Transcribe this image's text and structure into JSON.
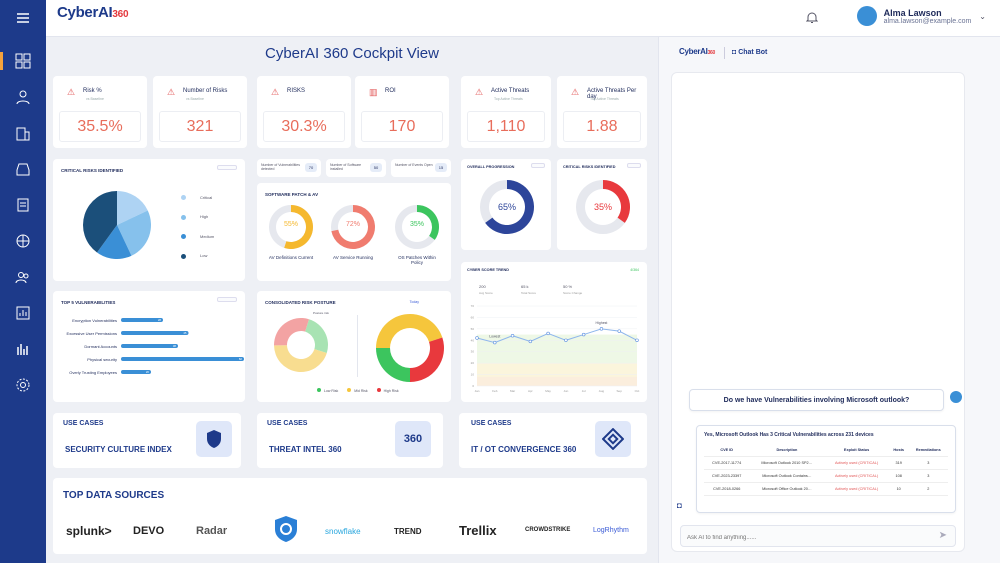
{
  "header": {
    "logo_main": "CyberAI",
    "logo_num": "360",
    "user_name": "Alma Lawson",
    "user_email": "alma.lawson@example.com"
  },
  "page_title": "CyberAI 360 Cockpit View",
  "kpis": [
    {
      "label": "Risk %",
      "sub": "vs Baseline",
      "value": "35.5%"
    },
    {
      "label": "Number of Risks",
      "sub": "vs Baseline",
      "value": "321"
    },
    {
      "label": "RISKS",
      "sub": "",
      "value": "30.3%"
    },
    {
      "label": "ROI",
      "sub": "",
      "value": "170"
    },
    {
      "label": "Active Threats",
      "sub": "Top Active Threats",
      "value": "1,110"
    },
    {
      "label": "Active Threats Per day",
      "sub": "Top Active Threats",
      "value": "1.88"
    }
  ],
  "critical_risks": {
    "title": "CRITICAL RISKS IDENTIFIED",
    "legend": [
      "Critical",
      "High",
      "Medium",
      "Low"
    ],
    "chart_data": {
      "type": "pie",
      "categories": [
        "Critical",
        "High",
        "Medium",
        "Low"
      ],
      "values": [
        18,
        25,
        17,
        40
      ],
      "colors": [
        "#aed3f3",
        "#86c1ec",
        "#3a8fd6",
        "#1b4f7a"
      ]
    }
  },
  "vuln_counts": [
    {
      "label": "Number of Vulnerabilities detected",
      "value": "70"
    },
    {
      "label": "Number of Software installed",
      "value": "50"
    },
    {
      "label": "Number of Events Open",
      "value": "15"
    }
  ],
  "patch": {
    "title": "SOFTWARE PATCH & AV",
    "items": [
      {
        "pct": "55%",
        "label": "AV Definitions Current",
        "color": "#f5b82e",
        "value": 55
      },
      {
        "pct": "72%",
        "label": "AV Service Running",
        "color": "#f07c6f",
        "value": 72
      },
      {
        "pct": "35%",
        "label": "OS Patches Within Policy",
        "color": "#3cc55e",
        "value": 35
      }
    ]
  },
  "overall": {
    "title": "OVERALL PROGRESSION",
    "pct": "65%",
    "value": 65,
    "color": "#2d459a"
  },
  "critical2": {
    "title": "CRITICAL RISKS IDENTIFIED",
    "pct": "35%",
    "value": 35,
    "color": "#e8393d"
  },
  "top_vulns": {
    "title": "TOP 5 VULNERABILITIES",
    "chart_data": {
      "type": "bar",
      "categories": [
        "Encryption Vulnerabilities",
        "Excessive User Permissions",
        "Dormant Accounts",
        "Physical security",
        "Overly Trusting Employees"
      ],
      "values": [
        28,
        45,
        38,
        82,
        20
      ]
    }
  },
  "posture": {
    "title": "CONSOLIDATED RISK POSTURE",
    "tab": "Today",
    "inner_label": "Posture risk",
    "legend": [
      "Low Risk",
      "Mid Risk",
      "High Risk"
    ],
    "chart_data": {
      "type": "pie",
      "categories": [
        "Low Risk",
        "Mid Risk",
        "High Risk"
      ],
      "values": [
        25,
        45,
        30
      ],
      "colors": [
        "#3cc55e",
        "#f5c63c",
        "#e8393d"
      ]
    }
  },
  "trend": {
    "title": "CYBER SCORE TREND",
    "badge": "4/364",
    "stats": [
      {
        "v": "200",
        "l": "Avg Score"
      },
      {
        "v": "65 k",
        "l": "Total Score"
      },
      {
        "v": "50 %",
        "l": "Score Change"
      }
    ],
    "highest": "Highest",
    "lowest": "Lowest",
    "chart_data": {
      "type": "line",
      "x": [
        "Jan",
        "Feb",
        "Mar",
        "Apr",
        "May",
        "Jun",
        "Jul",
        "Aug",
        "Sep",
        "Oct"
      ],
      "values": [
        42,
        38,
        44,
        39,
        46,
        40,
        45,
        50,
        48,
        40
      ],
      "ylim": [
        0,
        70
      ]
    }
  },
  "use_cases": [
    {
      "tag": "USE CASES",
      "name": "SECURITY CULTURE INDEX"
    },
    {
      "tag": "USE CASES",
      "name": "THREAT INTEL 360"
    },
    {
      "tag": "USE CASES",
      "name": "IT / OT CONVERGENCE 360"
    }
  ],
  "data_sources": {
    "title": "TOP DATA SOURCES",
    "items": [
      "splunk>",
      "DEVO",
      "Radar",
      "",
      "snowflake",
      "TREND",
      "Trellix",
      "CROWDSTRIKE",
      "LogRhythm"
    ]
  },
  "chat": {
    "bot_label": "Chat Bot",
    "question": "Do we have Vulnerabilities involving Microsoft outlook?",
    "answer": "Yes, Microsoft Outlook Has 3 Critical Vulnerabilities across 231 devices",
    "columns": [
      "CVE ID",
      "Description",
      "Exploit Status",
      "Hosts",
      "Remediations"
    ],
    "rows": [
      [
        "CVE-2017-11774",
        "Microsoft Outlook 2010 SP2…",
        "Actively used (CRITICAL)",
        "319",
        "3"
      ],
      [
        "CVE-2023-23397",
        "Microsoft Outlook Contains…",
        "Actively used (CRITICAL)",
        "108",
        "3"
      ],
      [
        "CVE-2018-0266",
        "Microsoft Office Outlook 20…",
        "Actively used (CRITICAL)",
        "10",
        "2"
      ]
    ],
    "placeholder": "Ask AI to find anything......"
  }
}
